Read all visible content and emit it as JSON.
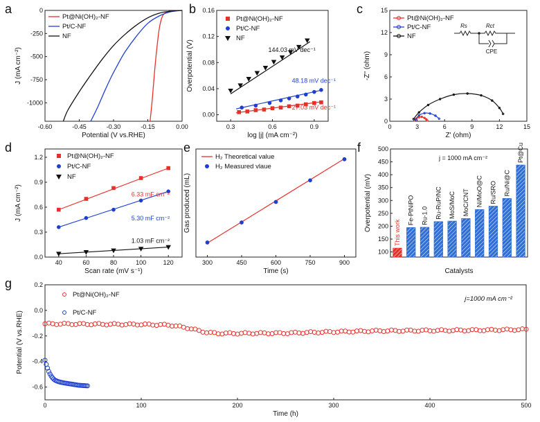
{
  "colors": {
    "red": "#e8302a",
    "blue": "#1f3fd1",
    "black": "#111111",
    "barRed": "#e8302a",
    "barBlue": "#2f6fd6"
  },
  "panels": {
    "a": {
      "letter": "a",
      "type": "line",
      "xlabel": "Potential (V vs.RHE)",
      "ylabel": "J (mA cm⁻²)",
      "xlim": [
        -0.6,
        0.0
      ],
      "ylim": [
        -1200,
        0
      ],
      "xticks": [
        "-0.60",
        "-0.45",
        "-0.30",
        "-0.15",
        "0.00"
      ],
      "xtickvals": [
        -0.6,
        -0.45,
        -0.3,
        -0.15,
        0.0
      ],
      "yticks": [
        "0",
        "-250",
        "-500",
        "-750",
        "-1000"
      ],
      "ytickvals": [
        0,
        -250,
        -500,
        -750,
        -1000
      ],
      "legend": [
        "Pt@Ni(OH)₂-NF",
        "Pt/C-NF",
        "NF"
      ],
      "series": [
        {
          "name": "Pt@Ni(OH)₂-NF",
          "color": "red",
          "x": [
            0.0,
            -0.02,
            -0.04,
            -0.06,
            -0.08,
            -0.09,
            -0.1,
            -0.11,
            -0.12,
            -0.13,
            -0.14
          ],
          "y": [
            0,
            -2,
            -5,
            -12,
            -40,
            -90,
            -200,
            -400,
            -650,
            -950,
            -1200
          ]
        },
        {
          "name": "Pt/C-NF",
          "color": "blue",
          "x": [
            0.0,
            -0.05,
            -0.1,
            -0.15,
            -0.2,
            -0.25,
            -0.28,
            -0.31,
            -0.34,
            -0.37,
            -0.4
          ],
          "y": [
            0,
            -15,
            -60,
            -140,
            -280,
            -450,
            -580,
            -720,
            -880,
            -1050,
            -1200
          ]
        },
        {
          "name": "NF",
          "color": "black",
          "x": [
            0.0,
            -0.05,
            -0.1,
            -0.15,
            -0.2,
            -0.25,
            -0.3,
            -0.35,
            -0.4,
            -0.45,
            -0.5,
            -0.52
          ],
          "y": [
            0,
            -8,
            -30,
            -80,
            -160,
            -260,
            -380,
            -530,
            -700,
            -880,
            -1080,
            -1200
          ]
        }
      ]
    },
    "b": {
      "letter": "b",
      "type": "scatter",
      "xlabel": "log |j| (mA cm⁻²)",
      "ylabel": "Overpotential (V)",
      "xlim": [
        0.2,
        1.0
      ],
      "ylim": [
        -0.01,
        0.16
      ],
      "xticks": [
        "0.3",
        "0.6",
        "0.9"
      ],
      "xtickvals": [
        0.3,
        0.6,
        0.9
      ],
      "yticks": [
        "0.00",
        "0.04",
        "0.08",
        "0.12",
        "0.16"
      ],
      "ytickvals": [
        0.0,
        0.04,
        0.08,
        0.12,
        0.16
      ],
      "legend": [
        "Pt@Ni(OH)₂-NF",
        "Pt/C-NF",
        "NF"
      ],
      "annotations": [
        "144.03 mV dec⁻¹",
        "48.18 mV dec⁻¹",
        "27.03 mV dec⁻¹"
      ],
      "series": [
        {
          "name": "Pt@Ni(OH)₂-NF",
          "color": "red",
          "marker": "square",
          "x": [
            0.36,
            0.42,
            0.48,
            0.54,
            0.6,
            0.66,
            0.72,
            0.78,
            0.84,
            0.9,
            0.95
          ],
          "y": [
            0.004,
            0.005,
            0.007,
            0.008,
            0.01,
            0.011,
            0.013,
            0.014,
            0.016,
            0.018,
            0.019
          ],
          "fit": [
            [
              0.34,
              0.003
            ],
            [
              0.96,
              0.02
            ]
          ]
        },
        {
          "name": "Pt/C-NF",
          "color": "blue",
          "marker": "circle",
          "x": [
            0.38,
            0.48,
            0.58,
            0.66,
            0.72,
            0.78,
            0.84,
            0.9,
            0.95
          ],
          "y": [
            0.011,
            0.014,
            0.018,
            0.022,
            0.025,
            0.028,
            0.031,
            0.035,
            0.038
          ],
          "fit": [
            [
              0.34,
              0.009
            ],
            [
              0.96,
              0.038
            ]
          ]
        },
        {
          "name": "NF",
          "color": "black",
          "marker": "triangle",
          "x": [
            0.3,
            0.37,
            0.43,
            0.49,
            0.55,
            0.61,
            0.67,
            0.73,
            0.79,
            0.85
          ],
          "y": [
            0.037,
            0.045,
            0.055,
            0.064,
            0.072,
            0.081,
            0.088,
            0.096,
            0.104,
            0.114
          ],
          "fit": [
            [
              0.3,
              0.032
            ],
            [
              0.87,
              0.112
            ]
          ]
        }
      ]
    },
    "c": {
      "letter": "c",
      "type": "line",
      "xlabel": "Z' (ohm)",
      "ylabel": "-Z'' (ohm)",
      "xlim": [
        0,
        15
      ],
      "ylim": [
        0,
        15
      ],
      "xticks": [
        "0",
        "3",
        "6",
        "9",
        "12",
        "15"
      ],
      "xtickvals": [
        0,
        3,
        6,
        9,
        12,
        15
      ],
      "yticks": [
        "0",
        "3",
        "6",
        "9",
        "12",
        "15"
      ],
      "ytickvals": [
        0,
        3,
        6,
        9,
        12,
        15
      ],
      "legend": [
        "Pt@Ni(OH)₂-NF",
        "Pt/C-NF",
        "NF"
      ],
      "circuit": [
        "Rs",
        "Rct",
        "CPE"
      ],
      "series": [
        {
          "name": "Pt@Ni(OH)₂-NF",
          "color": "red",
          "x": [
            2.7,
            2.9,
            3.2,
            3.5,
            3.8,
            4.0,
            4.1
          ],
          "y": [
            0.1,
            0.35,
            0.55,
            0.6,
            0.45,
            0.25,
            0.1
          ]
        },
        {
          "name": "Pt/C-NF",
          "color": "blue",
          "x": [
            2.8,
            3.2,
            3.8,
            4.4,
            5.0,
            5.4
          ],
          "y": [
            0.2,
            0.8,
            1.1,
            1.05,
            0.75,
            0.35
          ]
        },
        {
          "name": "NF",
          "color": "black",
          "x": [
            2.6,
            3.2,
            4.2,
            5.5,
            7.0,
            8.5,
            10.0,
            11.2,
            12.0,
            12.4
          ],
          "y": [
            0.3,
            1.2,
            2.2,
            3.0,
            3.6,
            3.75,
            3.5,
            2.8,
            1.8,
            1.0
          ]
        }
      ]
    },
    "d": {
      "letter": "d",
      "type": "scatter",
      "xlabel": "Scan rate (mV s⁻¹)",
      "ylabel": "J (mA cm⁻²)",
      "xlim": [
        30,
        130
      ],
      "ylim": [
        0,
        1.3
      ],
      "xticks": [
        "40",
        "60",
        "80",
        "100",
        "120"
      ],
      "xtickvals": [
        40,
        60,
        80,
        100,
        120
      ],
      "yticks": [
        "0.0",
        "0.3",
        "0.6",
        "0.9",
        "1.2"
      ],
      "ytickvals": [
        0,
        0.3,
        0.6,
        0.9,
        1.2
      ],
      "legend": [
        "Pt@Ni(OH)₂-NF",
        "Pt/C-NF",
        "NF"
      ],
      "annotations": [
        "6.33 mF cm⁻²",
        "5.30 mF cm⁻²",
        "1.03 mF cm⁻²"
      ],
      "series": [
        {
          "name": "Pt@Ni(OH)₂-NF",
          "color": "red",
          "marker": "square",
          "x": [
            40,
            60,
            80,
            100,
            120
          ],
          "y": [
            0.57,
            0.7,
            0.83,
            0.95,
            1.07
          ]
        },
        {
          "name": "Pt/C-NF",
          "color": "blue",
          "marker": "circle",
          "x": [
            40,
            60,
            80,
            100,
            120
          ],
          "y": [
            0.36,
            0.47,
            0.57,
            0.68,
            0.79
          ]
        },
        {
          "name": "NF",
          "color": "black",
          "marker": "triangle",
          "x": [
            40,
            60,
            80,
            100,
            120
          ],
          "y": [
            0.04,
            0.06,
            0.08,
            0.1,
            0.12
          ]
        }
      ]
    },
    "e": {
      "letter": "e",
      "type": "scatter",
      "xlabel": "Time (s)",
      "ylabel": "Gas produced (mL)",
      "xlim": [
        250,
        950
      ],
      "ylim": [
        5,
        25
      ],
      "xticks": [
        "300",
        "450",
        "600",
        "750",
        "900"
      ],
      "xtickvals": [
        300,
        450,
        600,
        750,
        900
      ],
      "yticks": [],
      "ytickvals": [],
      "legend": [
        "H₂ Theoretical value",
        "H₂ Measured vlaue"
      ],
      "series": [
        {
          "name": "H₂ Measured vlaue",
          "color": "blue",
          "marker": "circle",
          "x": [
            300,
            450,
            600,
            750,
            900
          ],
          "y": [
            7.7,
            11.4,
            15.2,
            19.2,
            23.1
          ]
        }
      ],
      "fit": [
        [
          300,
          7.6
        ],
        [
          900,
          23.2
        ]
      ]
    },
    "f": {
      "letter": "f",
      "type": "bar",
      "xlabel": "Catalysts",
      "ylabel": "Overpotential (mV)",
      "ylim": [
        80,
        500
      ],
      "yticks": [
        "100",
        "150",
        "200",
        "250",
        "300",
        "350",
        "400",
        "450",
        "500"
      ],
      "ytickvals": [
        100,
        150,
        200,
        250,
        300,
        350,
        400,
        450,
        500
      ],
      "annotation": "j = 1000 mA cm⁻²",
      "categories": [
        "This work",
        "Fe-PtNiPO",
        "Ru-1.0",
        "Ru-RuP/NC",
        "MoS/MoC",
        "MoC/CNT",
        "Ni/MoO@C",
        "Ru/SRO",
        "Ru/Ni@C",
        "Pt@Cu"
      ],
      "values": [
        115,
        195,
        196,
        218,
        220,
        230,
        265,
        278,
        308,
        438
      ]
    },
    "g": {
      "letter": "g",
      "type": "scatter",
      "xlabel": "Time (h)",
      "ylabel": "Potential (V vs.RHE)",
      "xlim": [
        0,
        500
      ],
      "ylim": [
        -0.7,
        0.2
      ],
      "xticks": [
        "0",
        "100",
        "200",
        "300",
        "400",
        "500"
      ],
      "xtickvals": [
        0,
        100,
        200,
        300,
        400,
        500
      ],
      "yticks": [
        "-0.6",
        "-0.4",
        "-0.2",
        "0.0",
        "0.2"
      ],
      "ytickvals": [
        -0.6,
        -0.4,
        -0.2,
        0.0,
        0.2
      ],
      "legend": [
        "Pt@Ni(OH)₂-NF",
        "Pt/C-NF"
      ],
      "annotation": "j=1000 mA cm⁻²",
      "series": [
        {
          "name": "Pt@Ni(OH)₂-NF",
          "color": "red",
          "x": [
            0,
            50,
            100,
            130,
            150,
            160,
            170,
            180,
            200,
            250,
            300,
            350,
            400,
            450,
            500
          ],
          "y": [
            -0.105,
            -0.108,
            -0.11,
            -0.115,
            -0.14,
            -0.16,
            -0.175,
            -0.18,
            -0.18,
            -0.178,
            -0.168,
            -0.16,
            -0.158,
            -0.155,
            -0.15
          ]
        },
        {
          "name": "Pt/C-NF",
          "color": "blue",
          "x": [
            0,
            2,
            4,
            6,
            8,
            10,
            13,
            16,
            20,
            25,
            30,
            35,
            40,
            45
          ],
          "y": [
            -0.39,
            -0.44,
            -0.48,
            -0.51,
            -0.53,
            -0.545,
            -0.555,
            -0.562,
            -0.568,
            -0.574,
            -0.58,
            -0.586,
            -0.589,
            -0.591
          ]
        }
      ]
    }
  }
}
